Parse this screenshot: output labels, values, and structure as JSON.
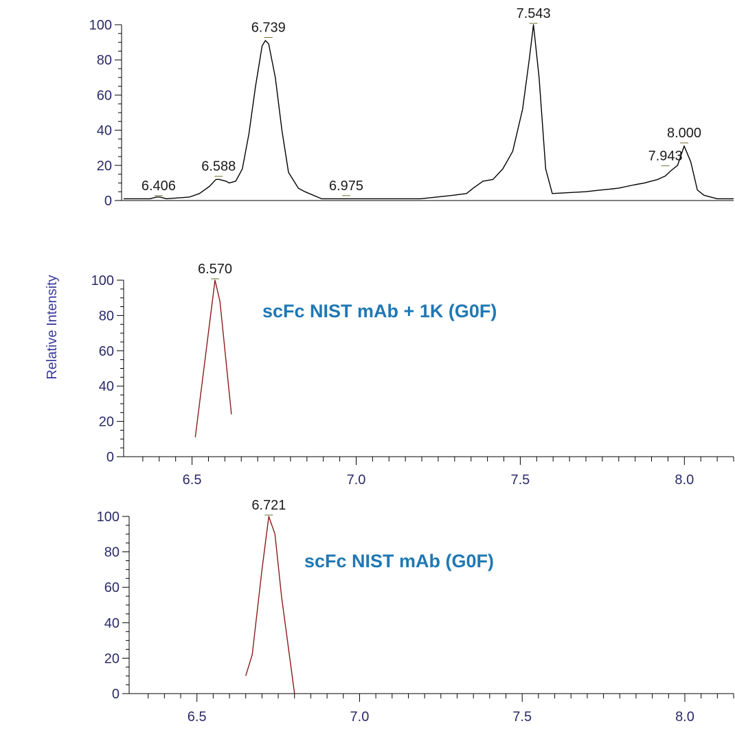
{
  "chart_data": [
    {
      "type": "line",
      "title": "",
      "xlabel": "",
      "ylabel": "",
      "xlim": [
        6.3,
        8.15
      ],
      "ylim": [
        0,
        100
      ],
      "y_ticks": [
        0,
        20,
        40,
        60,
        80,
        100
      ],
      "x_ticks": [],
      "grid": false,
      "line_color": "#000000",
      "series": [
        {
          "x": [
            6.3,
            6.38,
            6.4,
            6.41,
            6.43,
            6.5,
            6.53,
            6.56,
            6.58,
            6.59,
            6.61,
            6.62,
            6.64,
            6.66,
            6.68,
            6.7,
            6.72,
            6.73,
            6.74,
            6.76,
            6.78,
            6.8,
            6.83,
            6.85,
            6.9,
            6.98,
            7.1,
            7.2,
            7.25,
            7.3,
            7.34,
            7.36,
            7.39,
            7.42,
            7.45,
            7.48,
            7.51,
            7.53,
            7.543,
            7.56,
            7.58,
            7.6,
            7.7,
            7.75,
            7.8,
            7.85,
            7.88,
            7.9,
            7.92,
            7.943,
            7.96,
            7.98,
            8.0,
            8.02,
            8.04,
            8.06,
            8.1,
            8.15
          ],
          "y": [
            1,
            1,
            2,
            2,
            1,
            2,
            4,
            8,
            12,
            12,
            11,
            10,
            11,
            18,
            38,
            65,
            88,
            91,
            89,
            70,
            40,
            16,
            7,
            5,
            1,
            1,
            1,
            1,
            2,
            3,
            4,
            7,
            11,
            12,
            18,
            28,
            52,
            80,
            100,
            70,
            18,
            4,
            5,
            6,
            7,
            9,
            10,
            11,
            12,
            14,
            17,
            20,
            31,
            22,
            6,
            3,
            1,
            1
          ]
        }
      ],
      "annotations": [
        {
          "text": "6.406",
          "x": 6.406,
          "y": 2
        },
        {
          "text": "6.588",
          "x": 6.588,
          "y": 13
        },
        {
          "text": "6.739",
          "x": 6.739,
          "y": 92
        },
        {
          "text": "6.975",
          "x": 6.975,
          "y": 2
        },
        {
          "text": "7.543",
          "x": 7.543,
          "y": 100
        },
        {
          "text": "7.943",
          "x": 7.943,
          "y": 19
        },
        {
          "text": "8.000",
          "x": 8.0,
          "y": 32
        }
      ]
    },
    {
      "type": "line",
      "title": "",
      "caption": "scFc NIST mAb + 1K (G0F)",
      "xlabel": "",
      "ylabel": "Relative Intensity",
      "xlim": [
        6.3,
        8.15
      ],
      "ylim": [
        0,
        100
      ],
      "y_ticks": [
        0,
        20,
        40,
        60,
        80,
        100
      ],
      "x_ticks": [
        6.5,
        7.0,
        7.5,
        8.0
      ],
      "x_tick_labels": [
        "6.5",
        "7.0",
        "7.5",
        "8.0"
      ],
      "grid": false,
      "line_color": "#8b1a1a",
      "caption_color": "#1f78b4",
      "series": [
        {
          "x": [
            6.51,
            6.57,
            6.585,
            6.62
          ],
          "y": [
            11,
            100,
            88,
            24
          ]
        }
      ],
      "annotations": [
        {
          "text": "6.570",
          "x": 6.57,
          "y": 100
        }
      ]
    },
    {
      "type": "line",
      "title": "",
      "caption": "scFc NIST mAb (G0F)",
      "xlabel": "",
      "ylabel": "",
      "xlim": [
        6.3,
        8.15
      ],
      "ylim": [
        0,
        100
      ],
      "y_ticks": [
        0,
        20,
        40,
        60,
        80,
        100
      ],
      "x_ticks": [
        6.5,
        7.0,
        7.5,
        8.0
      ],
      "x_tick_labels": [
        "6.5",
        "7.0",
        "7.5",
        "8.0"
      ],
      "grid": false,
      "line_color": "#8b1a1a",
      "caption_color": "#1f78b4",
      "series": [
        {
          "x": [
            6.65,
            6.67,
            6.7,
            6.721,
            6.74,
            6.76,
            6.8
          ],
          "y": [
            10,
            22,
            70,
            100,
            90,
            55,
            0
          ]
        }
      ],
      "annotations": [
        {
          "text": "6.721",
          "x": 6.721,
          "y": 100
        }
      ]
    }
  ]
}
